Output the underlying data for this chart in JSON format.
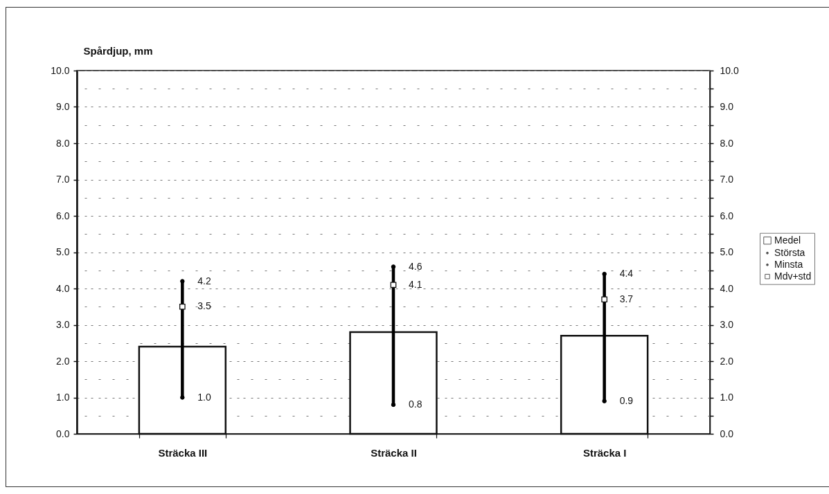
{
  "chart_data": {
    "type": "bar",
    "ylabel": "Spårdjup, mm",
    "categories": [
      "Sträcka III",
      "Sträcka II",
      "Sträcka I"
    ],
    "series": [
      {
        "name": "Medel",
        "type": "bar",
        "color": "#ffffff",
        "values": [
          2.4,
          2.8,
          2.7
        ]
      },
      {
        "name": "Största",
        "type": "scatter",
        "marker": "none",
        "color": "#000000",
        "values": [
          4.2,
          4.6,
          4.4
        ],
        "value_labels": [
          "4.2",
          "4.6",
          "4.4"
        ]
      },
      {
        "name": "Minsta",
        "type": "scatter",
        "marker": "none",
        "color": "#000000",
        "values": [
          1.0,
          0.8,
          0.9
        ],
        "value_labels": [
          "1.0",
          "0.8",
          "0.9"
        ]
      },
      {
        "name": "Mdv+std",
        "type": "scatter",
        "marker": "square",
        "color": "#ffffff",
        "values": [
          3.5,
          4.1,
          3.7
        ],
        "value_labels": [
          "3.5",
          "4.1",
          "3.7"
        ]
      }
    ],
    "ylim": [
      0,
      10
    ],
    "yticks": [
      {
        "value": 0,
        "label": "0.0"
      },
      {
        "value": 0.5,
        "label": null
      },
      {
        "value": 1,
        "label": "1.0"
      },
      {
        "value": 1.5,
        "label": null
      },
      {
        "value": 2,
        "label": "2.0"
      },
      {
        "value": 2.5,
        "label": null
      },
      {
        "value": 3,
        "label": "3.0"
      },
      {
        "value": 3.5,
        "label": null
      },
      {
        "value": 4,
        "label": "4.0"
      },
      {
        "value": 4.5,
        "label": null
      },
      {
        "value": 5,
        "label": "5.0"
      },
      {
        "value": 5.5,
        "label": null
      },
      {
        "value": 6,
        "label": "6.0"
      },
      {
        "value": 6.5,
        "label": null
      },
      {
        "value": 7,
        "label": "7.0"
      },
      {
        "value": 7.5,
        "label": null
      },
      {
        "value": 8,
        "label": "8.0"
      },
      {
        "value": 8.5,
        "label": null
      },
      {
        "value": 9,
        "label": "9.0"
      },
      {
        "value": 9.5,
        "label": null
      },
      {
        "value": 10,
        "label": "10.0"
      }
    ],
    "y2lim": [
      0,
      10
    ],
    "y2ticks": [
      {
        "value": 0,
        "label": "0.0"
      },
      {
        "value": 0.5,
        "label": null
      },
      {
        "value": 1,
        "label": "1.0"
      },
      {
        "value": 1.5,
        "label": null
      },
      {
        "value": 2,
        "label": "2.0"
      },
      {
        "value": 2.5,
        "label": null
      },
      {
        "value": 3,
        "label": "3.0"
      },
      {
        "value": 3.5,
        "label": null
      },
      {
        "value": 4,
        "label": "4.0"
      },
      {
        "value": 4.5,
        "label": null
      },
      {
        "value": 5,
        "label": "5.0"
      },
      {
        "value": 5.5,
        "label": null
      },
      {
        "value": 6,
        "label": "6.0"
      },
      {
        "value": 6.5,
        "label": null
      },
      {
        "value": 7,
        "label": "7.0"
      },
      {
        "value": 7.5,
        "label": null
      },
      {
        "value": 8,
        "label": "8.0"
      },
      {
        "value": 8.5,
        "label": null
      },
      {
        "value": 9,
        "label": "9.0"
      },
      {
        "value": 9.5,
        "label": null
      },
      {
        "value": 10,
        "label": "10.0"
      }
    ],
    "grid": "y",
    "legend": "right"
  }
}
